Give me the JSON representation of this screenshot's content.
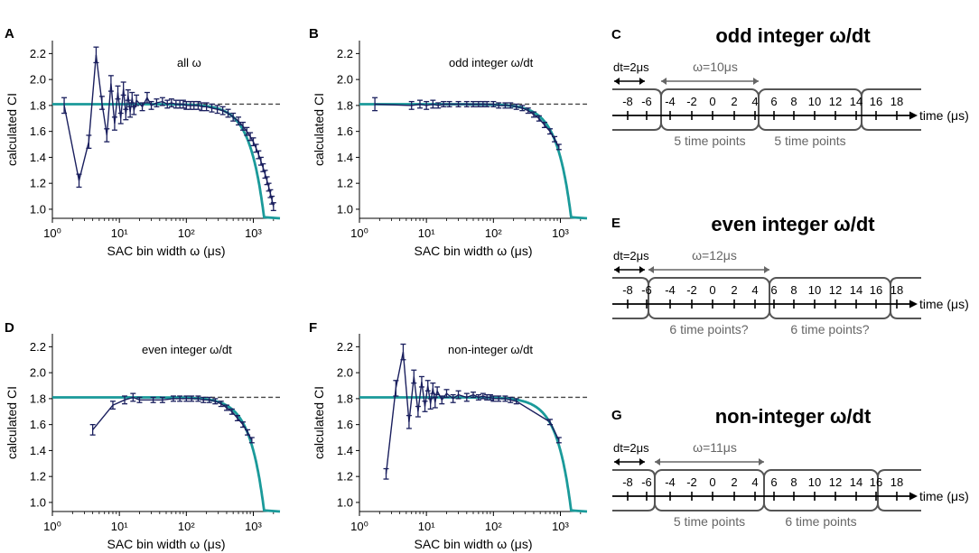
{
  "colors": {
    "data": "#1a1f5e",
    "model": "#1a9a9a",
    "ref": "#444444",
    "box": "#555555"
  },
  "chart_data": [
    {
      "panel": "A",
      "type": "line",
      "annotation": "all ω",
      "xlabel": "SAC bin width ω (μs)",
      "ylabel": "calculated CI",
      "xscale": "log",
      "xlim": [
        1,
        2500
      ],
      "ylim": [
        0.93,
        2.3
      ],
      "xticks": [
        1,
        10,
        100,
        1000
      ],
      "xtick_labels": [
        "10⁰",
        "10¹",
        "10²",
        "10³"
      ],
      "yticks": [
        1.0,
        1.2,
        1.4,
        1.6,
        1.8,
        2.0,
        2.2
      ],
      "ytick_labels": [
        "1.0",
        "1.2",
        "1.4",
        "1.6",
        "1.8",
        "2.0",
        "2.2"
      ],
      "reference_line": 1.81,
      "series": [
        {
          "name": "calculated CI",
          "x": [
            1.5,
            2.5,
            3.5,
            4.5,
            5.5,
            6.5,
            7.5,
            8.5,
            9.5,
            10.5,
            11.5,
            12.5,
            13.5,
            14.5,
            15.5,
            16.5,
            18,
            22,
            26,
            30,
            36,
            44,
            52,
            60,
            70,
            80,
            90,
            100,
            115,
            130,
            150,
            170,
            200,
            240,
            290,
            350,
            420,
            500,
            600,
            700,
            800,
            900,
            1000,
            1100,
            1200,
            1300,
            1400,
            1500,
            1600,
            1700,
            1800,
            1900,
            2000
          ],
          "y": [
            1.8,
            1.22,
            1.52,
            2.19,
            1.82,
            1.57,
            1.97,
            1.66,
            1.9,
            1.7,
            1.93,
            1.73,
            1.88,
            1.75,
            1.86,
            1.76,
            1.84,
            1.79,
            1.86,
            1.8,
            1.82,
            1.83,
            1.81,
            1.82,
            1.81,
            1.81,
            1.81,
            1.8,
            1.8,
            1.8,
            1.8,
            1.79,
            1.79,
            1.78,
            1.77,
            1.76,
            1.74,
            1.71,
            1.68,
            1.64,
            1.6,
            1.56,
            1.52,
            1.47,
            1.42,
            1.37,
            1.32,
            1.27,
            1.22,
            1.17,
            1.12,
            1.07,
            1.02
          ],
          "err": [
            0.06,
            0.05,
            0.05,
            0.06,
            0.05,
            0.05,
            0.06,
            0.05,
            0.05,
            0.04,
            0.05,
            0.04,
            0.04,
            0.04,
            0.04,
            0.03,
            0.04,
            0.03,
            0.04,
            0.03,
            0.03,
            0.03,
            0.03,
            0.03,
            0.03,
            0.03,
            0.03,
            0.03,
            0.03,
            0.03,
            0.03,
            0.03,
            0.03,
            0.03,
            0.03,
            0.03,
            0.03,
            0.03,
            0.03,
            0.03,
            0.03,
            0.03,
            0.03,
            0.03,
            0.03,
            0.03,
            0.03,
            0.03,
            0.03,
            0.03,
            0.03,
            0.03,
            0.03
          ]
        }
      ]
    },
    {
      "panel": "B",
      "type": "line",
      "annotation": "odd integer ω/dt",
      "xlabel": "SAC bin width ω (μs)",
      "ylabel": "calculated CI",
      "xscale": "log",
      "xlim": [
        1,
        2500
      ],
      "ylim": [
        0.93,
        2.3
      ],
      "xticks": [
        1,
        10,
        100,
        1000
      ],
      "xtick_labels": [
        "10⁰",
        "10¹",
        "10²",
        "10³"
      ],
      "yticks": [
        1.0,
        1.2,
        1.4,
        1.6,
        1.8,
        2.0,
        2.2
      ],
      "ytick_labels": [
        "1.0",
        "1.2",
        "1.4",
        "1.6",
        "1.8",
        "2.0",
        "2.2"
      ],
      "reference_line": 1.81,
      "series": [
        {
          "name": "calculated CI",
          "x": [
            1.7,
            6,
            8,
            10,
            12.5,
            15,
            18,
            22,
            30,
            40,
            50,
            60,
            70,
            80,
            100,
            120,
            150,
            180,
            220,
            270,
            330,
            400,
            480,
            580,
            700,
            820,
            950
          ],
          "y": [
            1.81,
            1.8,
            1.81,
            1.8,
            1.81,
            1.8,
            1.81,
            1.81,
            1.81,
            1.81,
            1.81,
            1.81,
            1.81,
            1.81,
            1.81,
            1.8,
            1.8,
            1.8,
            1.79,
            1.78,
            1.76,
            1.73,
            1.7,
            1.65,
            1.6,
            1.54,
            1.48
          ],
          "err": [
            0.05,
            0.03,
            0.03,
            0.03,
            0.03,
            0.02,
            0.02,
            0.02,
            0.02,
            0.02,
            0.02,
            0.02,
            0.02,
            0.02,
            0.02,
            0.02,
            0.02,
            0.02,
            0.02,
            0.02,
            0.02,
            0.02,
            0.02,
            0.02,
            0.02,
            0.02,
            0.02
          ]
        }
      ]
    },
    {
      "panel": "D",
      "type": "line",
      "annotation": "even integer ω/dt",
      "xlabel": "SAC bin width ω (μs)",
      "ylabel": "calculated CI",
      "xscale": "log",
      "xlim": [
        1,
        2500
      ],
      "ylim": [
        0.93,
        2.3
      ],
      "xticks": [
        1,
        10,
        100,
        1000
      ],
      "xtick_labels": [
        "10⁰",
        "10¹",
        "10²",
        "10³"
      ],
      "yticks": [
        1.0,
        1.2,
        1.4,
        1.6,
        1.8,
        2.0,
        2.2
      ],
      "ytick_labels": [
        "1.0",
        "1.2",
        "1.4",
        "1.6",
        "1.8",
        "2.0",
        "2.2"
      ],
      "reference_line": 1.81,
      "series": [
        {
          "name": "calculated CI",
          "x": [
            4,
            8,
            12,
            16,
            20,
            32,
            44,
            64,
            80,
            100,
            120,
            150,
            180,
            220,
            270,
            330,
            400,
            480,
            580,
            700,
            820,
            950
          ],
          "y": [
            1.56,
            1.75,
            1.79,
            1.81,
            1.79,
            1.79,
            1.79,
            1.8,
            1.8,
            1.8,
            1.8,
            1.8,
            1.79,
            1.79,
            1.78,
            1.76,
            1.73,
            1.7,
            1.65,
            1.6,
            1.54,
            1.48
          ],
          "err": [
            0.04,
            0.03,
            0.03,
            0.03,
            0.02,
            0.02,
            0.02,
            0.02,
            0.02,
            0.02,
            0.02,
            0.02,
            0.02,
            0.02,
            0.02,
            0.02,
            0.02,
            0.02,
            0.02,
            0.02,
            0.02,
            0.02
          ]
        }
      ]
    },
    {
      "panel": "F",
      "type": "line",
      "annotation": "non-integer ω/dt",
      "xlabel": "SAC bin width ω (μs)",
      "ylabel": "calculated CI",
      "xscale": "log",
      "xlim": [
        1,
        2500
      ],
      "ylim": [
        0.93,
        2.3
      ],
      "xticks": [
        1,
        10,
        100,
        1000
      ],
      "xtick_labels": [
        "10⁰",
        "10¹",
        "10²",
        "10³"
      ],
      "yticks": [
        1.0,
        1.2,
        1.4,
        1.6,
        1.8,
        2.0,
        2.2
      ],
      "ytick_labels": [
        "1.0",
        "1.2",
        "1.4",
        "1.6",
        "1.8",
        "2.0",
        "2.2"
      ],
      "reference_line": 1.81,
      "series": [
        {
          "name": "calculated CI",
          "x": [
            2.5,
            3.5,
            4.5,
            5.5,
            6.5,
            7.5,
            8.5,
            9.5,
            10.5,
            11.5,
            12.5,
            13.5,
            14.5,
            17,
            20,
            25,
            30,
            40,
            50,
            60,
            70,
            80,
            90,
            100,
            120,
            150,
            180,
            220,
            700,
            950
          ],
          "y": [
            1.22,
            1.88,
            2.16,
            1.62,
            1.97,
            1.7,
            1.93,
            1.74,
            1.9,
            1.76,
            1.88,
            1.77,
            1.86,
            1.79,
            1.84,
            1.8,
            1.83,
            1.81,
            1.83,
            1.81,
            1.82,
            1.81,
            1.81,
            1.8,
            1.8,
            1.8,
            1.79,
            1.78,
            1.62,
            1.48
          ],
          "err": [
            0.04,
            0.06,
            0.06,
            0.05,
            0.05,
            0.04,
            0.04,
            0.04,
            0.04,
            0.04,
            0.04,
            0.04,
            0.03,
            0.03,
            0.03,
            0.03,
            0.03,
            0.03,
            0.02,
            0.02,
            0.02,
            0.02,
            0.02,
            0.02,
            0.02,
            0.02,
            0.02,
            0.02,
            0.02,
            0.02
          ]
        }
      ]
    }
  ],
  "diagrams": [
    {
      "panel": "C",
      "title": "odd integer ω/dt",
      "dt_label": "dt=2μs",
      "omega_label": "ω=10μs",
      "tick_values": [
        "-8",
        "-6",
        "-4",
        "-2",
        "0",
        "2",
        "4",
        "6",
        "8",
        "10",
        "12",
        "14",
        "16",
        "18"
      ],
      "axis_label": "time (μs)",
      "bin_labels": [
        "5 time points",
        "5 time points"
      ]
    },
    {
      "panel": "E",
      "title": "even integer ω/dt",
      "dt_label": "dt=2μs",
      "omega_label": "ω=12μs",
      "tick_values": [
        "-8",
        "-6",
        "-4",
        "-2",
        "0",
        "2",
        "4",
        "6",
        "8",
        "10",
        "12",
        "14",
        "16",
        "18"
      ],
      "axis_label": "time (μs)",
      "bin_labels": [
        "6 time points?",
        "6 time points?"
      ]
    },
    {
      "panel": "G",
      "title": "non-integer ω/dt",
      "dt_label": "dt=2μs",
      "omega_label": "ω=11μs",
      "tick_values": [
        "-8",
        "-6",
        "-4",
        "-2",
        "0",
        "2",
        "4",
        "6",
        "8",
        "10",
        "12",
        "14",
        "16",
        "18"
      ],
      "axis_label": "time (μs)",
      "bin_labels": [
        "5 time points",
        "6 time points"
      ]
    }
  ]
}
